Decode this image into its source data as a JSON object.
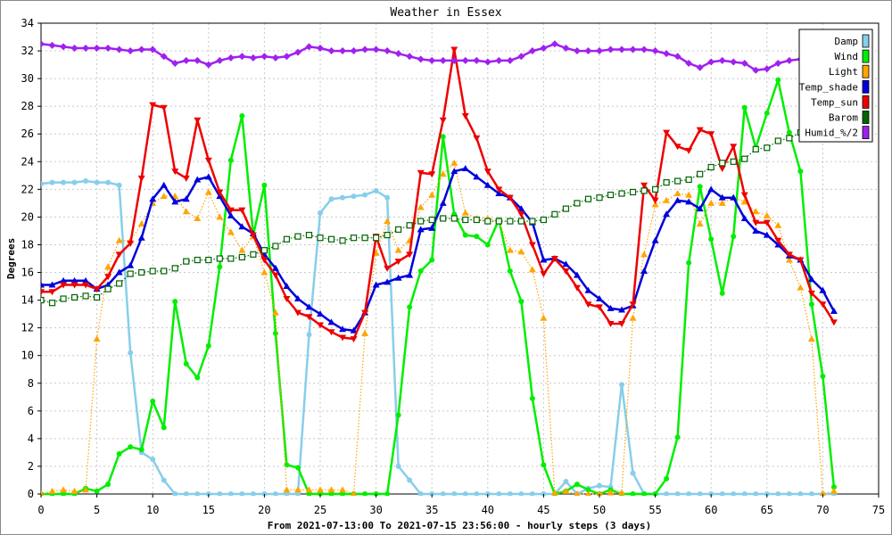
{
  "chart_data": {
    "type": "line",
    "title": "Weather in Essex",
    "xlabel": "From 2021-07-13:00 To 2021-07-15 23:56:00 - hourly steps (3 days)",
    "ylabel": "Degrees",
    "xlim": [
      0,
      75
    ],
    "ylim": [
      0,
      34
    ],
    "xticks": [
      0,
      5,
      10,
      15,
      20,
      25,
      30,
      35,
      40,
      45,
      50,
      55,
      60,
      65,
      70,
      75
    ],
    "yticks": [
      0,
      2,
      4,
      6,
      8,
      10,
      12,
      14,
      16,
      18,
      20,
      22,
      24,
      26,
      28,
      30,
      32,
      34
    ],
    "grid": true,
    "legend_position": "top-right",
    "series": [
      {
        "name": "Damp",
        "color": "#87ceeb",
        "marker": "circle",
        "style": "solid",
        "values": [
          22.4,
          22.5,
          22.5,
          22.5,
          22.6,
          22.5,
          22.5,
          22.3,
          10.2,
          3.0,
          2.5,
          1.0,
          0,
          0,
          0,
          0,
          0,
          0,
          0,
          0,
          0,
          0,
          0,
          0,
          11.5,
          20.3,
          21.3,
          21.4,
          21.5,
          21.6,
          21.9,
          21.4,
          2.0,
          1.0,
          0,
          0,
          0,
          0,
          0,
          0,
          0,
          0,
          0,
          0,
          0,
          0,
          0,
          0.9,
          0,
          0.4,
          0.6,
          0.5,
          7.9,
          1.5,
          0,
          0,
          0,
          0,
          0,
          0,
          0,
          0,
          0,
          0,
          0,
          0,
          0,
          0,
          0,
          0,
          0,
          0
        ]
      },
      {
        "name": "Wind",
        "color": "#00ee00",
        "marker": "circle",
        "style": "solid",
        "values": [
          0,
          0,
          0,
          0,
          0.4,
          0.2,
          0.7,
          2.9,
          3.4,
          3.2,
          6.7,
          4.8,
          13.9,
          9.4,
          8.4,
          10.7,
          16.4,
          24.1,
          27.3,
          18.7,
          22.3,
          11.6,
          2.1,
          1.9,
          0,
          0,
          0,
          0,
          0,
          0,
          0,
          0,
          5.7,
          13.5,
          16.1,
          16.9,
          25.8,
          20.2,
          18.7,
          18.6,
          18.0,
          19.8,
          16.1,
          13.9,
          6.9,
          2.1,
          0,
          0.2,
          0.7,
          0.3,
          0,
          0.3,
          0,
          0,
          0,
          0,
          1.1,
          4.1,
          16.7,
          22.2,
          18.4,
          14.5,
          18.6,
          27.9,
          25.0,
          27.5,
          29.9,
          26.1,
          23.3,
          13.7,
          8.5,
          0.5
        ]
      },
      {
        "name": "Light",
        "color": "#ffa500",
        "marker": "triangle",
        "style": "dotted",
        "values": [
          0,
          0.2,
          0.3,
          0.2,
          0.3,
          11.2,
          16.4,
          18.3,
          18.3,
          19.5,
          21.0,
          21.5,
          21.5,
          20.4,
          19.9,
          21.8,
          20.0,
          18.9,
          17.6,
          18.6,
          16.0,
          13.1,
          0.3,
          0.3,
          0.3,
          0.3,
          0.3,
          0.3,
          0,
          11.6,
          17.4,
          19.7,
          17.6,
          18.3,
          20.7,
          21.6,
          23.1,
          23.9,
          20.3,
          19.9,
          19.9,
          19.7,
          17.6,
          17.5,
          16.2,
          12.7,
          0.1,
          0.2,
          0,
          0,
          0,
          0.1,
          0.1,
          12.7,
          17.3,
          20.9,
          21.2,
          21.7,
          21.6,
          19.5,
          21.0,
          21.0,
          21.4,
          21.1,
          20.4,
          20.1,
          19.4,
          16.9,
          14.9,
          11.2,
          0,
          0.2
        ]
      },
      {
        "name": "Temp_shade",
        "color": "#0000dd",
        "marker": "triangle",
        "style": "solid",
        "values": [
          15.1,
          15.1,
          15.4,
          15.4,
          15.4,
          14.8,
          15.1,
          16.0,
          16.5,
          18.5,
          21.3,
          22.3,
          21.1,
          21.3,
          22.7,
          22.9,
          21.5,
          20.1,
          19.3,
          18.8,
          17.3,
          16.3,
          15.0,
          14.1,
          13.5,
          13.0,
          12.4,
          11.9,
          11.8,
          13.1,
          15.1,
          15.3,
          15.6,
          15.8,
          19.1,
          19.2,
          21.0,
          23.3,
          23.5,
          22.9,
          22.3,
          21.7,
          21.4,
          20.6,
          19.6,
          16.9,
          17.0,
          16.6,
          15.8,
          14.7,
          14.1,
          13.4,
          13.3,
          13.6,
          16.1,
          18.3,
          20.2,
          21.2,
          21.1,
          20.6,
          22.0,
          21.4,
          21.4,
          19.9,
          19.0,
          18.7,
          18.0,
          17.2,
          16.9,
          15.5,
          14.7,
          13.2
        ]
      },
      {
        "name": "Temp_sun",
        "color": "#ee0000",
        "marker": "triangle-down",
        "style": "solid",
        "values": [
          14.6,
          14.6,
          15.1,
          15.1,
          15.1,
          14.8,
          15.7,
          17.3,
          18.1,
          22.8,
          28.1,
          27.9,
          23.3,
          22.8,
          27.0,
          24.1,
          21.8,
          20.5,
          20.5,
          18.7,
          16.9,
          15.8,
          14.1,
          13.1,
          12.8,
          12.2,
          11.7,
          11.3,
          11.2,
          13.1,
          18.6,
          16.3,
          16.8,
          17.3,
          23.2,
          23.1,
          27.0,
          32.1,
          27.3,
          25.7,
          23.3,
          22.0,
          21.4,
          20.2,
          18.0,
          15.9,
          17.0,
          16.1,
          14.9,
          13.7,
          13.5,
          12.3,
          12.3,
          13.7,
          22.3,
          21.2,
          26.1,
          25.1,
          24.8,
          26.3,
          26.0,
          23.5,
          25.1,
          21.6,
          19.6,
          19.6,
          18.3,
          17.3,
          16.9,
          14.5,
          13.7,
          12.4
        ]
      },
      {
        "name": "Barom",
        "color": "#006400",
        "marker": "square",
        "style": "dotted",
        "values": [
          14.0,
          13.8,
          14.1,
          14.2,
          14.3,
          14.2,
          14.8,
          15.2,
          15.9,
          16.0,
          16.1,
          16.1,
          16.3,
          16.8,
          16.9,
          16.9,
          17.0,
          17.0,
          17.1,
          17.3,
          17.6,
          17.9,
          18.4,
          18.6,
          18.7,
          18.5,
          18.4,
          18.3,
          18.5,
          18.5,
          18.5,
          18.7,
          19.1,
          19.4,
          19.7,
          19.8,
          19.9,
          19.9,
          19.8,
          19.8,
          19.7,
          19.7,
          19.7,
          19.7,
          19.7,
          19.8,
          20.2,
          20.6,
          21.0,
          21.3,
          21.4,
          21.6,
          21.7,
          21.8,
          21.9,
          22.0,
          22.5,
          22.6,
          22.7,
          23.1,
          23.6,
          23.9,
          24.0,
          24.2,
          24.9,
          25.0,
          25.5,
          25.7,
          26.1,
          null,
          null,
          null
        ]
      },
      {
        "name": "Humid_%/2",
        "color": "#a020f0",
        "marker": "diamond",
        "style": "solid",
        "values": [
          32.5,
          32.4,
          32.3,
          32.2,
          32.2,
          32.2,
          32.2,
          32.1,
          32.0,
          32.1,
          32.1,
          31.6,
          31.1,
          31.3,
          31.3,
          31.0,
          31.3,
          31.5,
          31.6,
          31.5,
          31.6,
          31.5,
          31.6,
          31.9,
          32.3,
          32.2,
          32.0,
          32.0,
          32.0,
          32.1,
          32.1,
          32.0,
          31.8,
          31.6,
          31.4,
          31.3,
          31.3,
          31.3,
          31.3,
          31.3,
          31.2,
          31.3,
          31.3,
          31.6,
          32.0,
          32.2,
          32.5,
          32.2,
          32.0,
          32.0,
          32.0,
          32.1,
          32.1,
          32.1,
          32.1,
          32.0,
          31.8,
          31.6,
          31.1,
          30.8,
          31.2,
          31.3,
          31.2,
          31.1,
          30.6,
          30.7,
          31.1,
          31.3,
          31.4,
          null,
          null,
          null
        ]
      }
    ]
  }
}
